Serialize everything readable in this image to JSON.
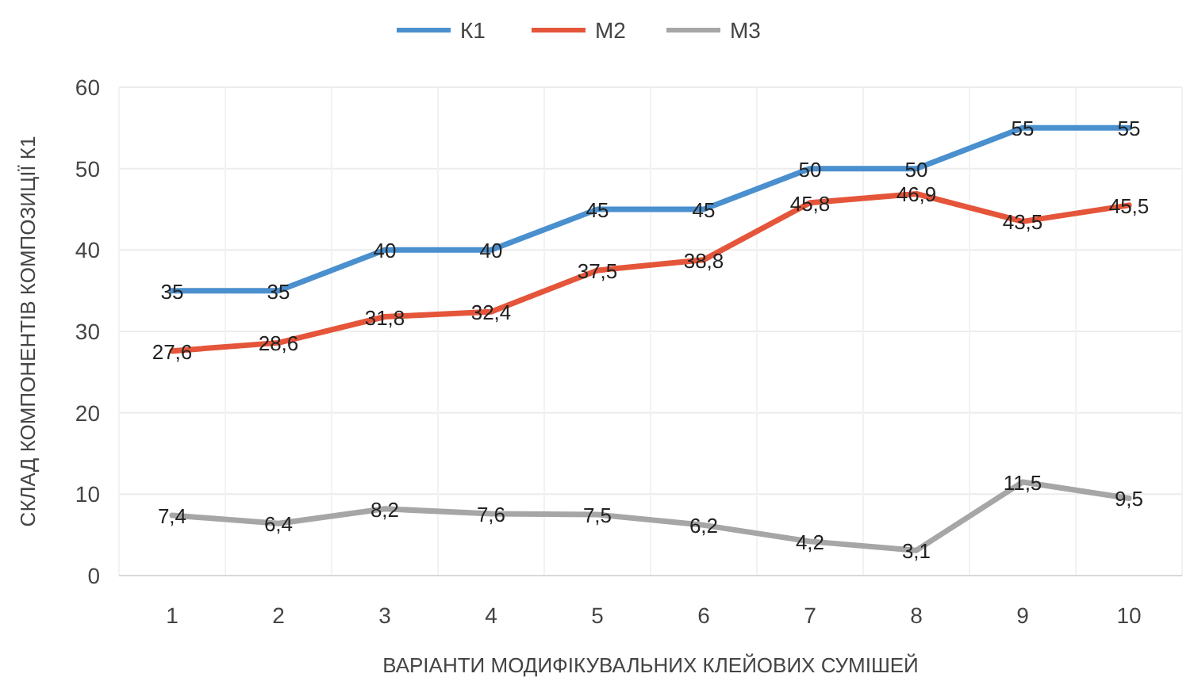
{
  "chart_data": {
    "type": "line",
    "xlabel": "ВАРІАНТИ МОДИФІКУВАЛЬНИХ КЛЕЙОВИХ СУМІШЕЙ",
    "ylabel": "СКЛАД КОМПОНЕНТІВ КОМПОЗИЦІЇ К1",
    "categories": [
      "1",
      "2",
      "3",
      "4",
      "5",
      "6",
      "7",
      "8",
      "9",
      "10"
    ],
    "series": [
      {
        "name": "К1",
        "color": "#4a8fce",
        "values": [
          35,
          35,
          40,
          40,
          45,
          45,
          50,
          50,
          55,
          55
        ],
        "value_labels": [
          "35",
          "35",
          "40",
          "40",
          "45",
          "45",
          "50",
          "50",
          "55",
          "55"
        ]
      },
      {
        "name": "М2",
        "color": "#e5553a",
        "values": [
          27.6,
          28.6,
          31.8,
          32.4,
          37.5,
          38.8,
          45.8,
          46.9,
          43.5,
          45.5
        ],
        "value_labels": [
          "27,6",
          "28,6",
          "31,8",
          "32,4",
          "37,5",
          "38,8",
          "45,8",
          "46,9",
          "43,5",
          "45,5"
        ]
      },
      {
        "name": "М3",
        "color": "#a6a6a6",
        "values": [
          7.4,
          6.4,
          8.2,
          7.6,
          7.5,
          6.2,
          4.2,
          3.1,
          11.5,
          9.5
        ],
        "value_labels": [
          "7,4",
          "6,4",
          "8,2",
          "7,6",
          "7,5",
          "6,2",
          "4,2",
          "3,1",
          "11,5",
          "9,5"
        ]
      }
    ],
    "ylim": [
      0,
      60
    ],
    "yticks": [
      0,
      10,
      20,
      30,
      40,
      50,
      60
    ],
    "grid": true,
    "legend": "top",
    "marker": "none",
    "line_style": "solid"
  }
}
